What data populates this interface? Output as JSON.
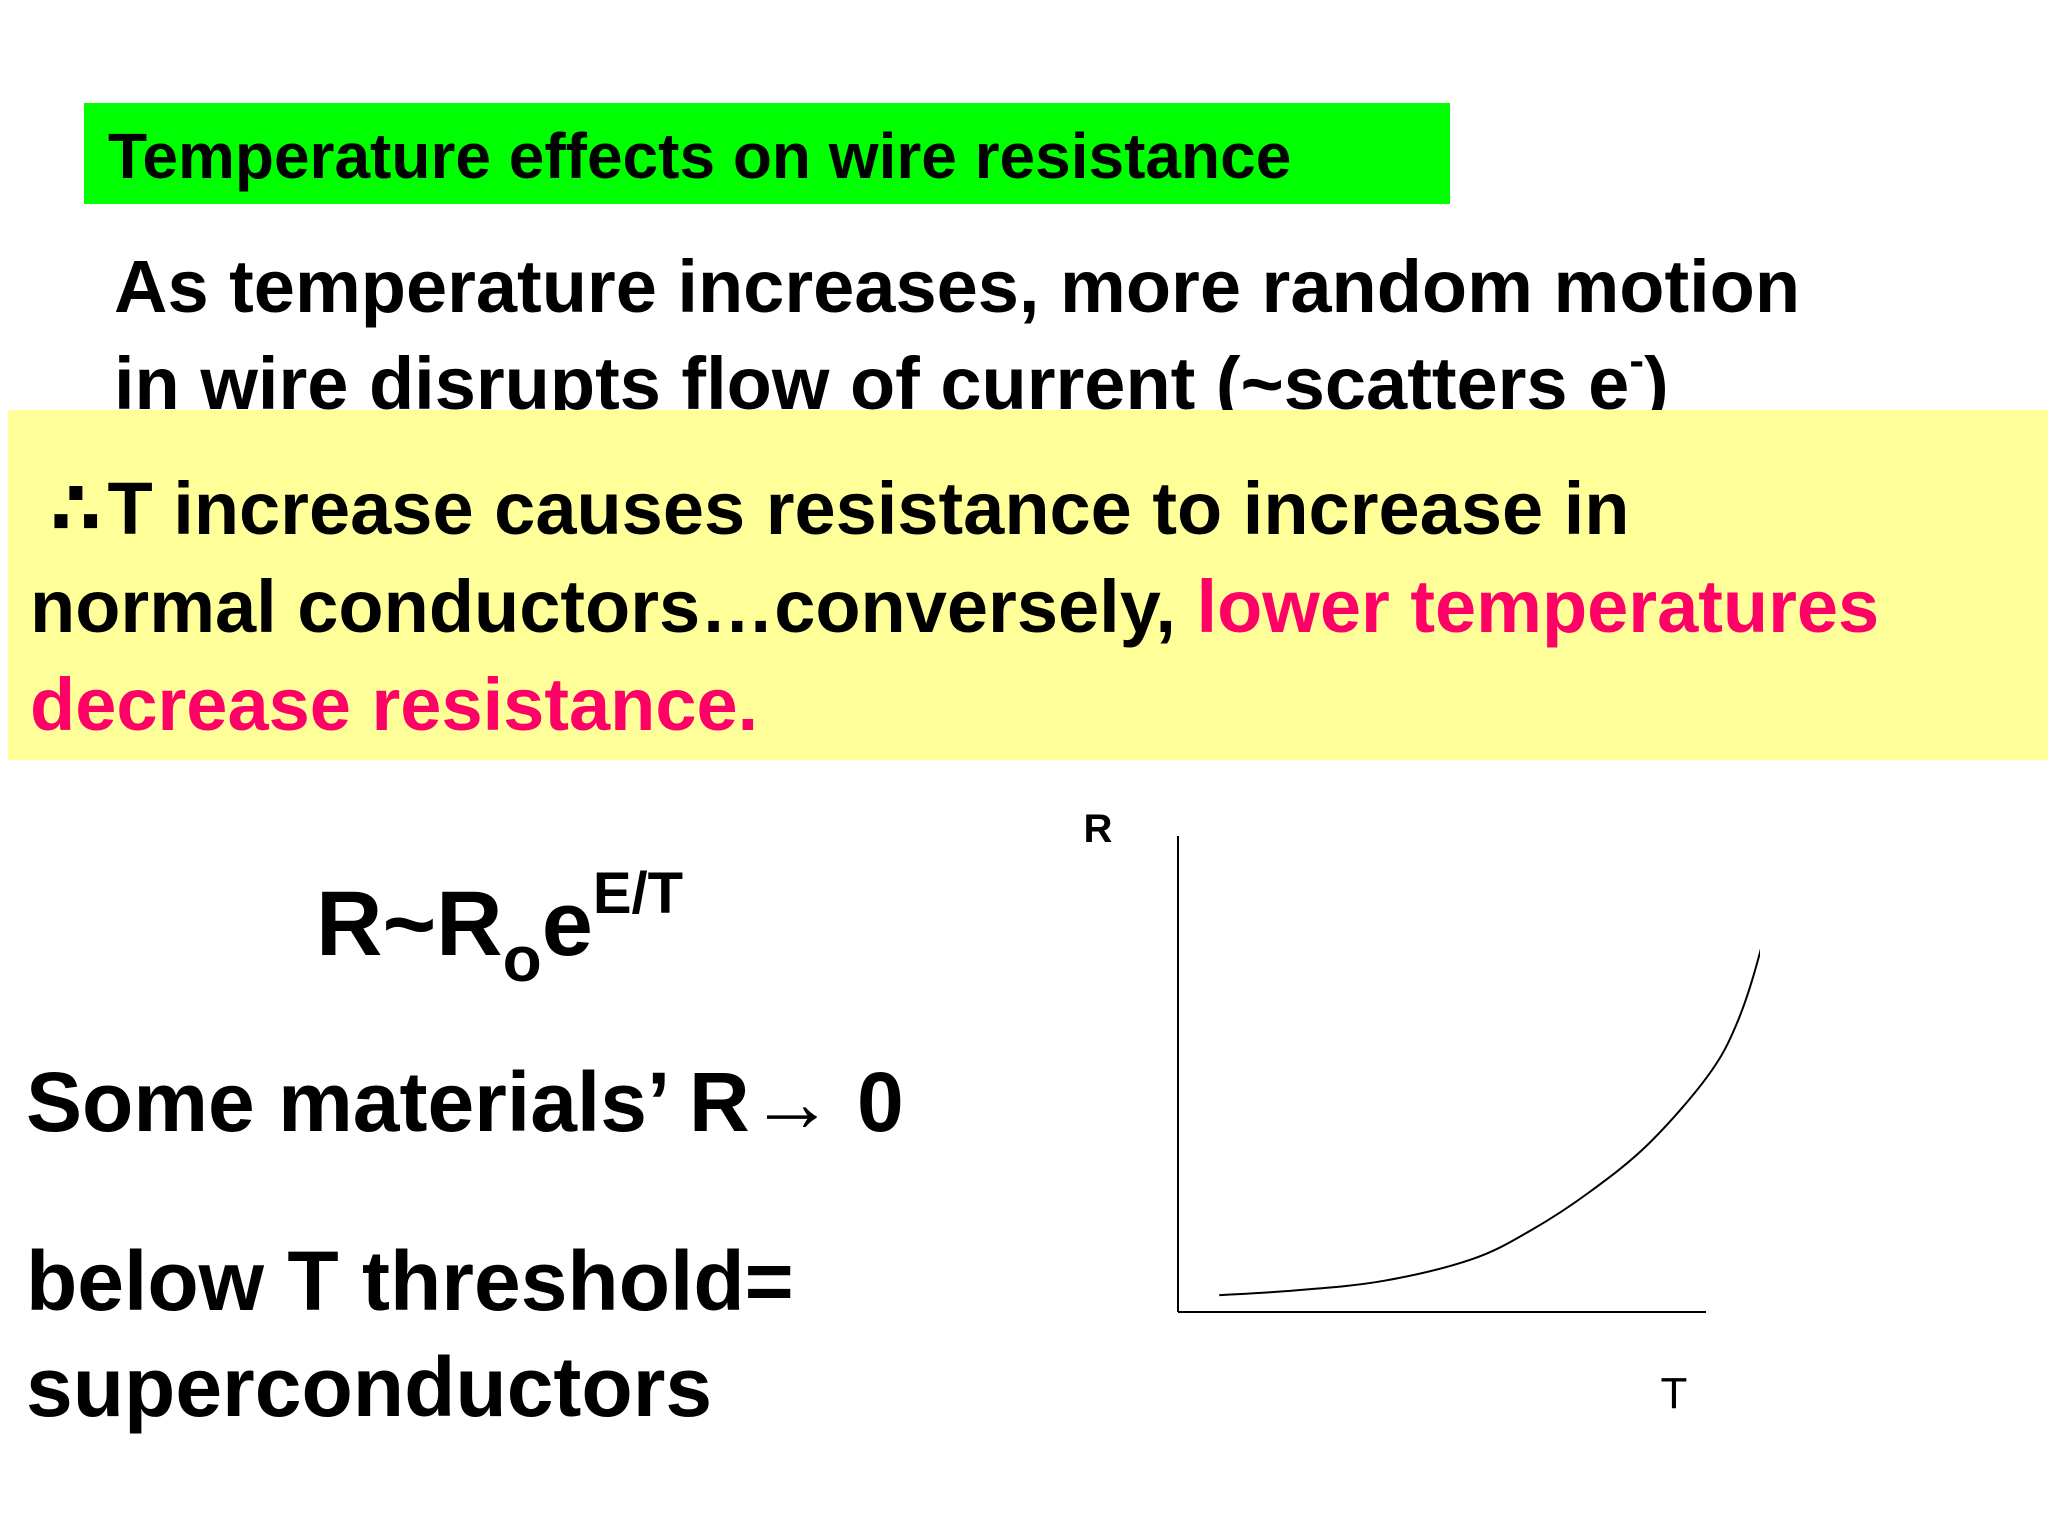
{
  "slide": {
    "title": "Temperature effects on wire resistance",
    "intro": {
      "line1": "As temperature increases, more random motion",
      "line2_prefix": "in wire disrupts flow of current (~scatters e",
      "line2_sup": "-",
      "line2_suffix": ")"
    },
    "conclusion": {
      "therefore_symbol": "∴",
      "line1": "T increase  causes resistance to increase in",
      "line2_black": "normal conductors…conversely, ",
      "line2_red": "lower temperatures",
      "line3_red": "decrease resistance."
    },
    "equation": {
      "base": "R~R",
      "subscript": "o",
      "e": "e",
      "exponent": "E/T"
    },
    "materials_text": "Some materials’ R",
    "materials_arrow": "→",
    "materials_value": " 0",
    "threshold_line1": "below T threshold=",
    "threshold_line2": "superconductors",
    "colors": {
      "title_bg": "#00ff00",
      "highlight_bg": "#ffff99",
      "accent_red": "#ff0066",
      "text": "#000000"
    }
  },
  "chart_data": {
    "type": "line",
    "xlabel": "T",
    "ylabel": "R",
    "grid": false,
    "legend": "none",
    "xlim": [
      0,
      1
    ],
    "ylim": [
      0,
      1
    ],
    "series": [
      {
        "x": [
          0.07,
          0.2,
          0.35,
          0.5,
          0.6,
          0.7,
          0.8,
          0.9,
          0.95,
          0.99,
          1.01
        ],
        "values": [
          0.035,
          0.045,
          0.065,
          0.11,
          0.17,
          0.25,
          0.35,
          0.49,
          0.6,
          0.75,
          0.88
        ]
      }
    ]
  }
}
